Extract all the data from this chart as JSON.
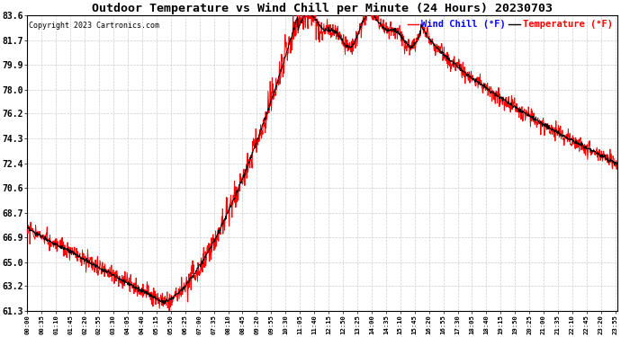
{
  "title": "Outdoor Temperature vs Wind Chill per Minute (24 Hours) 20230703",
  "copyright": "Copyright 2023 Cartronics.com",
  "legend_wind": "Wind Chill (°F)",
  "legend_temp": "Temperature (°F)",
  "wind_color": "#ff0000",
  "temp_color": "#000000",
  "bg_color": "#ffffff",
  "grid_color": "#cccccc",
  "yticks": [
    61.3,
    63.2,
    65.0,
    66.9,
    68.7,
    70.6,
    72.4,
    74.3,
    76.2,
    78.0,
    79.9,
    81.7,
    83.6
  ],
  "ytick_labels": [
    "61.3",
    "63.2",
    "65.0",
    "66.9",
    "68.7",
    "70.6",
    "72.4",
    "74.3",
    "76.2",
    "78.0",
    "79.9",
    "81.7",
    "83.6"
  ],
  "ylim": [
    61.3,
    83.6
  ],
  "figsize": [
    6.9,
    3.75
  ],
  "dpi": 100
}
